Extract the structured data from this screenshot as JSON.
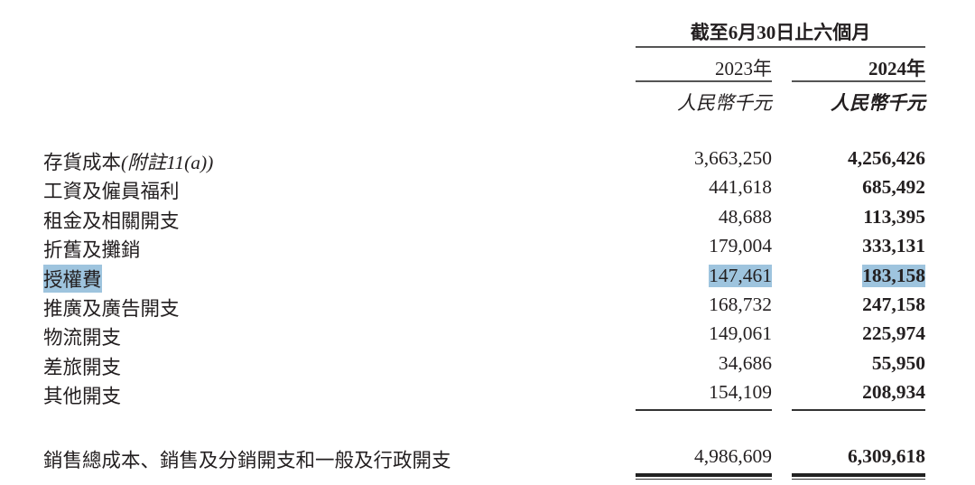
{
  "header": {
    "period": "截至6月30日止六個月",
    "years": [
      "2023年",
      "2024年"
    ],
    "units": [
      "人民幣千元",
      "人民幣千元"
    ]
  },
  "rows": [
    {
      "label": "存貨成本",
      "note": "(附註11(a))",
      "v2023": "3,663,250",
      "v2024": "4,256,426"
    },
    {
      "label": "工資及僱員福利",
      "v2023": "441,618",
      "v2024": "685,492"
    },
    {
      "label": "租金及相關開支",
      "v2023": "48,688",
      "v2024": "113,395"
    },
    {
      "label": "折舊及攤銷",
      "v2023": "179,004",
      "v2024": "333,131"
    },
    {
      "label": "授權費",
      "v2023": "147,461",
      "v2024": "183,158",
      "highlighted": true
    },
    {
      "label": "推廣及廣告開支",
      "v2023": "168,732",
      "v2024": "247,158"
    },
    {
      "label": "物流開支",
      "v2023": "149,061",
      "v2024": "225,974"
    },
    {
      "label": "差旅開支",
      "v2023": "34,686",
      "v2024": "55,950"
    },
    {
      "label": "其他開支",
      "v2023": "154,109",
      "v2024": "208,934"
    }
  ],
  "total": {
    "label": "銷售總成本、銷售及分銷開支和一般及行政開支",
    "v2023": "4,986,609",
    "v2024": "6,309,618"
  },
  "colors": {
    "highlight": "#9ec4de",
    "text": "#231f20"
  }
}
